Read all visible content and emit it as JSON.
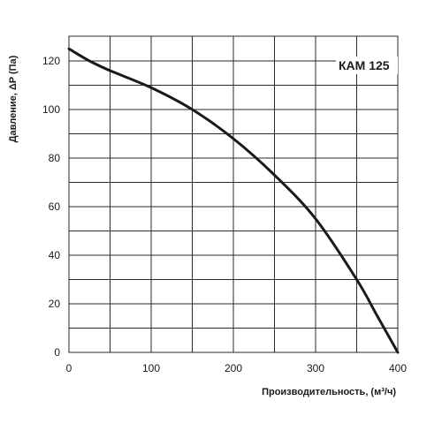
{
  "chart_data": {
    "type": "line",
    "title": "КАМ 125",
    "xlabel": "Производительность, (м³/ч)",
    "ylabel": "Давление, ΔP (Па)",
    "xlim": [
      0,
      400
    ],
    "ylim": [
      0,
      130
    ],
    "x_ticks": [
      0,
      100,
      200,
      300,
      400
    ],
    "y_ticks": [
      0,
      20,
      40,
      60,
      80,
      100,
      120
    ],
    "grid": true,
    "series": [
      {
        "values": [
          {
            "x": 0,
            "y": 125
          },
          {
            "x": 25,
            "y": 120
          },
          {
            "x": 50,
            "y": 116
          },
          {
            "x": 100,
            "y": 109
          },
          {
            "x": 150,
            "y": 100
          },
          {
            "x": 200,
            "y": 88
          },
          {
            "x": 250,
            "y": 73
          },
          {
            "x": 300,
            "y": 55
          },
          {
            "x": 350,
            "y": 30
          },
          {
            "x": 375,
            "y": 15
          },
          {
            "x": 400,
            "y": 0
          }
        ]
      }
    ]
  },
  "colors": {
    "curve": "#1a1a1a",
    "grid": "#2a2a2a",
    "text": "#1a1a1a",
    "background": "#ffffff"
  }
}
